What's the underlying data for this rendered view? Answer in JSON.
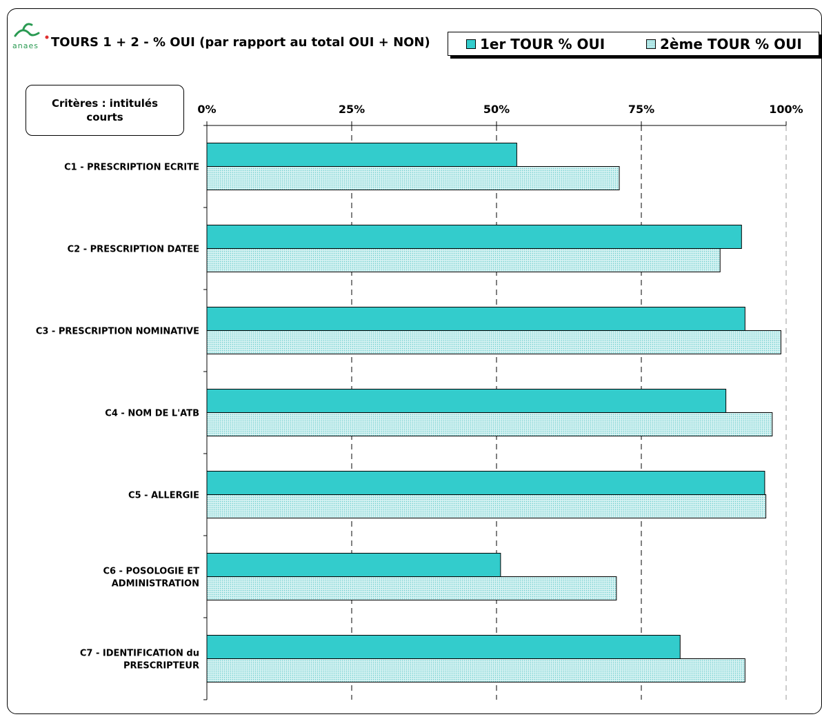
{
  "header": {
    "logo_text": "anaes",
    "chart_title": "TOURS 1 + 2  - % OUI  (par rapport au total OUI + NON)"
  },
  "legend": {
    "series_1": "1er TOUR % OUI",
    "series_2": "2ème TOUR % OUI"
  },
  "criteria_box_label": "Critères : intitulés courts",
  "colors": {
    "series_1": "#33cccc",
    "series_2": "#d6f2f2",
    "series_2_dots": "#66cccc",
    "logo": "#2a9a52",
    "logo_dot": "#e03030"
  },
  "chart_data": {
    "type": "bar",
    "orientation": "horizontal",
    "categories": [
      [
        "C1 - PRESCRIPTION ECRITE"
      ],
      [
        "C2 - PRESCRIPTION DATEE"
      ],
      [
        "C3 - PRESCRIPTION NOMINATIVE"
      ],
      [
        "C4 - NOM DE L'ATB"
      ],
      [
        "C5 - ALLERGIE"
      ],
      [
        "C6 - POSOLOGIE ET",
        "ADMINISTRATION"
      ],
      [
        "C7 - IDENTIFICATION du",
        "PRESCRIPTEUR"
      ]
    ],
    "series": [
      {
        "name": "1er TOUR % OUI",
        "values": [
          53.5,
          92.3,
          92.9,
          89.6,
          96.3,
          50.7,
          81.7
        ]
      },
      {
        "name": "2ème TOUR % OUI",
        "values": [
          71.2,
          88.6,
          99.1,
          97.6,
          96.5,
          70.7,
          92.9
        ]
      }
    ],
    "xlim": [
      0,
      100
    ],
    "xticks": [
      "0%",
      "25%",
      "50%",
      "75%",
      "100%"
    ],
    "grid": "vertical dashed",
    "legend_position": "top-right"
  }
}
